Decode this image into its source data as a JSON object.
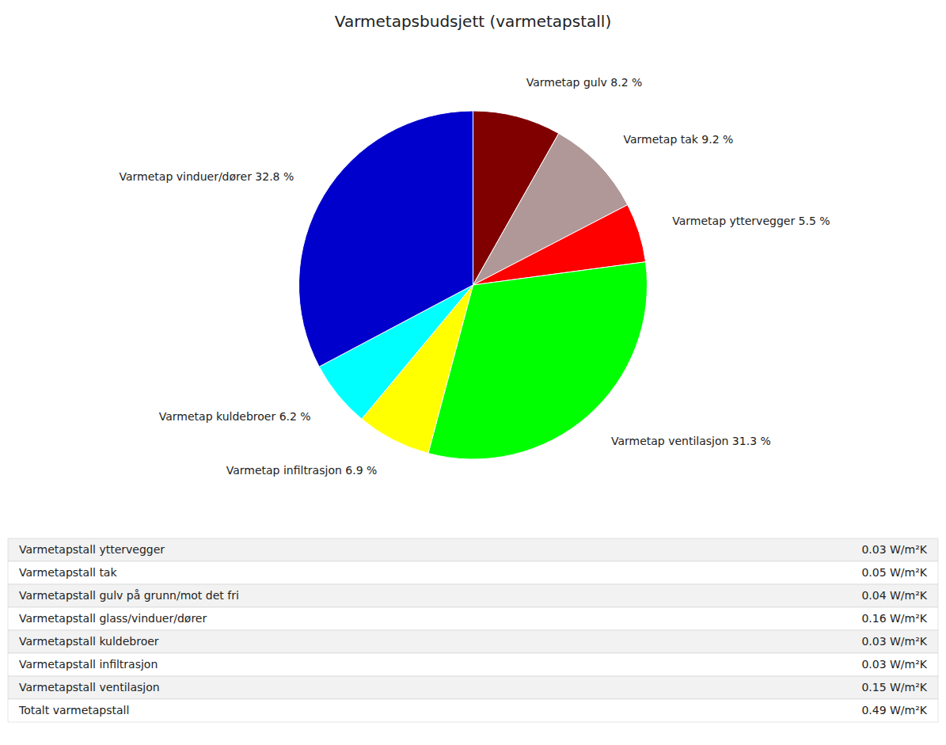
{
  "chart_data": {
    "type": "pie",
    "title": "Varmetapsbudsjett (varmetapstall)",
    "categories": [
      "Varmetap gulv 8.2 %",
      "Varmetap tak 9.2 %",
      "Varmetap yttervegger 5.5 %",
      "Varmetap ventilasjon 31.3 %",
      "Varmetap infiltrasjon 6.9 %",
      "Varmetap kuldebroer 6.2 %",
      "Varmetap vinduer/dører 32.8 %"
    ],
    "values": [
      8.2,
      9.2,
      5.5,
      31.3,
      6.9,
      6.2,
      32.8
    ],
    "colors": [
      "#800000",
      "#b09898",
      "#ff0000",
      "#00ff00",
      "#ffff00",
      "#00ffff",
      "#0000cc"
    ],
    "table_rows": [
      {
        "label": "Varmetapstall yttervegger",
        "value": "0.03 W/m²K"
      },
      {
        "label": "Varmetapstall tak",
        "value": "0.05 W/m²K"
      },
      {
        "label": "Varmetapstall gulv på grunn/mot det fri",
        "value": "0.04 W/m²K"
      },
      {
        "label": "Varmetapstall glass/vinduer/dører",
        "value": "0.16 W/m²K"
      },
      {
        "label": "Varmetapstall kuldebroer",
        "value": "0.03 W/m²K"
      },
      {
        "label": "Varmetapstall infiltrasjon",
        "value": "0.03 W/m²K"
      },
      {
        "label": "Varmetapstall ventilasjon",
        "value": "0.15 W/m²K"
      },
      {
        "label": "Totalt varmetapstall",
        "value": "0.49 W/m²K"
      }
    ]
  }
}
